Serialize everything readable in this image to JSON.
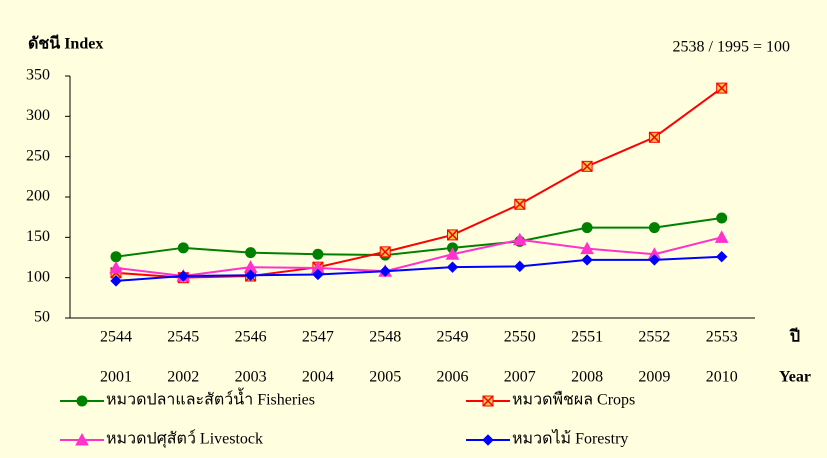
{
  "chart_data": {
    "type": "line",
    "axis_title": "ดัชนี Index",
    "annotation": "2538 / 1995 = 100",
    "x_label": "ปี",
    "x_label_secondary": "Year",
    "categories": [
      "2544",
      "2545",
      "2546",
      "2547",
      "2548",
      "2549",
      "2550",
      "2551",
      "2552",
      "2553"
    ],
    "categories_secondary": [
      "2001",
      "2002",
      "2003",
      "2004",
      "2005",
      "2006",
      "2007",
      "2008",
      "2009",
      "2010"
    ],
    "ylim": [
      50,
      350
    ],
    "yticks": [
      50,
      100,
      150,
      200,
      250,
      300,
      350
    ],
    "grid": false,
    "series": [
      {
        "name": "หมวดปลาและสัตว์น้ำ Fisheries",
        "color": "#008000",
        "marker": "circle",
        "values": [
          126,
          137,
          131,
          129,
          128,
          137,
          145,
          162,
          162,
          174
        ]
      },
      {
        "name": "หมวดพืชผล Crops",
        "color": "#ff0000",
        "marker": "square-x",
        "values": [
          106,
          100,
          102,
          113,
          132,
          153,
          191,
          238,
          274,
          335
        ]
      },
      {
        "name": "หมวดปศุสัตว์ Livestock",
        "color": "#ff33cc",
        "marker": "triangle",
        "values": [
          112,
          102,
          113,
          112,
          108,
          129,
          147,
          136,
          129,
          150
        ]
      },
      {
        "name": "หมวดไม้ Forestry",
        "color": "#0000ff",
        "marker": "diamond",
        "values": [
          96,
          102,
          103,
          104,
          108,
          113,
          114,
          122,
          122,
          126
        ]
      }
    ]
  }
}
